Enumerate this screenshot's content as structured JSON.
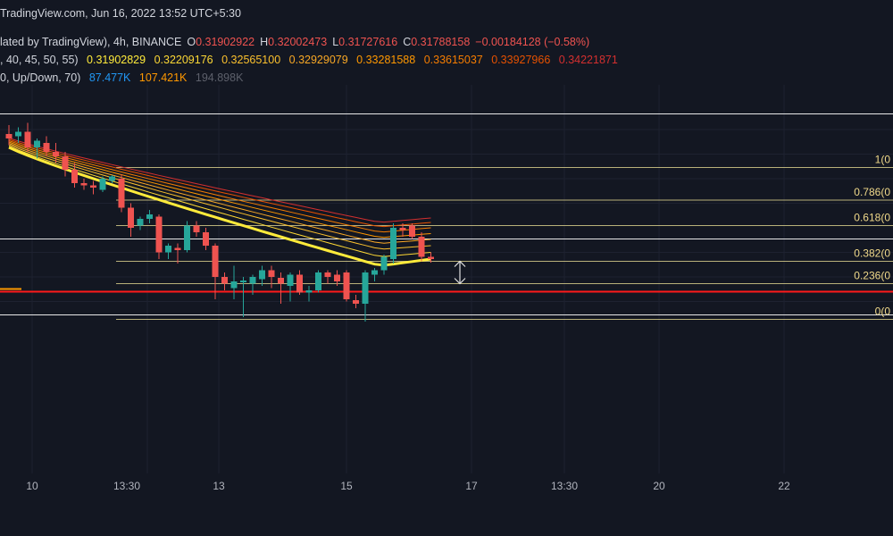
{
  "header": {
    "source_line": "TradingView.com, Jun 16, 2022 13:52 UTC+5:30",
    "symbol_line": {
      "prefix": "lated by TradingView), 4h, BINANCE",
      "o_label": "O",
      "o_value": "0.31902922",
      "h_label": "H",
      "h_value": "0.32002473",
      "l_label": "L",
      "l_value": "0.31727616",
      "c_label": "C",
      "c_value": "0.31788158",
      "change": "−0.00184128 (−0.58%)"
    },
    "ema_line": {
      "prefix": ", 40, 45, 50, 55)",
      "values": [
        "0.31902829",
        "0.32209176",
        "0.32565100",
        "0.32929079",
        "0.33281588",
        "0.33615037",
        "0.33927966",
        "0.34221871"
      ]
    },
    "volume_line": {
      "prefix": "0, Up/Down, 70)",
      "values": [
        "87.477K",
        "107.421K",
        "194.898K"
      ]
    }
  },
  "colors": {
    "background": "#131722",
    "up": "#26a69a",
    "down": "#ef5350",
    "ema": [
      "#ffeb3b",
      "#fdd835",
      "#fbc02d",
      "#f9a825",
      "#ff9800",
      "#f57c00",
      "#e65100",
      "#d32f2f"
    ],
    "fib_line": "#d6cc8a",
    "support_line": "#ff1a1a"
  },
  "chart_data": {
    "type": "candlestick",
    "x_ticks": [
      "10",
      "13:30",
      "13",
      "15",
      "17",
      "13:30",
      "20",
      "22"
    ],
    "price_range": [
      0.276,
      0.363
    ],
    "fib_levels": [
      {
        "label": "1(0",
        "price": 0.3445
      },
      {
        "label": "0.786(0",
        "price": 0.3372
      },
      {
        "label": "0.618(0",
        "price": 0.3315
      },
      {
        "label": "0.382(0",
        "price": 0.3235
      },
      {
        "label": "0.236(0",
        "price": 0.3185
      },
      {
        "label": "0(0",
        "price": 0.3105
      }
    ],
    "horizontal_lines": [
      0.3565,
      0.3285,
      0.3115
    ],
    "support_price": 0.3167,
    "candles": [
      {
        "o": 0.352,
        "h": 0.354,
        "l": 0.3495,
        "c": 0.351
      },
      {
        "o": 0.3515,
        "h": 0.3535,
        "l": 0.35,
        "c": 0.3525
      },
      {
        "o": 0.3525,
        "h": 0.3545,
        "l": 0.348,
        "c": 0.349
      },
      {
        "o": 0.349,
        "h": 0.351,
        "l": 0.3465,
        "c": 0.3505
      },
      {
        "o": 0.35,
        "h": 0.3515,
        "l": 0.347,
        "c": 0.348
      },
      {
        "o": 0.348,
        "h": 0.35,
        "l": 0.3455,
        "c": 0.347
      },
      {
        "o": 0.347,
        "h": 0.348,
        "l": 0.3425,
        "c": 0.344
      },
      {
        "o": 0.344,
        "h": 0.3455,
        "l": 0.34,
        "c": 0.341
      },
      {
        "o": 0.341,
        "h": 0.342,
        "l": 0.3395,
        "c": 0.3405
      },
      {
        "o": 0.3405,
        "h": 0.3415,
        "l": 0.3385,
        "c": 0.34
      },
      {
        "o": 0.3395,
        "h": 0.3425,
        "l": 0.339,
        "c": 0.342
      },
      {
        "o": 0.3415,
        "h": 0.3428,
        "l": 0.341,
        "c": 0.3425
      },
      {
        "o": 0.342,
        "h": 0.343,
        "l": 0.3345,
        "c": 0.3355
      },
      {
        "o": 0.3355,
        "h": 0.3365,
        "l": 0.329,
        "c": 0.331
      },
      {
        "o": 0.3315,
        "h": 0.3335,
        "l": 0.3305,
        "c": 0.333
      },
      {
        "o": 0.333,
        "h": 0.335,
        "l": 0.332,
        "c": 0.334
      },
      {
        "o": 0.3335,
        "h": 0.334,
        "l": 0.324,
        "c": 0.3255
      },
      {
        "o": 0.3255,
        "h": 0.3275,
        "l": 0.324,
        "c": 0.327
      },
      {
        "o": 0.3265,
        "h": 0.3275,
        "l": 0.323,
        "c": 0.326
      },
      {
        "o": 0.326,
        "h": 0.3325,
        "l": 0.3255,
        "c": 0.3315
      },
      {
        "o": 0.3315,
        "h": 0.3325,
        "l": 0.329,
        "c": 0.33
      },
      {
        "o": 0.33,
        "h": 0.331,
        "l": 0.326,
        "c": 0.327
      },
      {
        "o": 0.327,
        "h": 0.3275,
        "l": 0.315,
        "c": 0.32
      },
      {
        "o": 0.32,
        "h": 0.321,
        "l": 0.317,
        "c": 0.3185
      },
      {
        "o": 0.3175,
        "h": 0.3225,
        "l": 0.315,
        "c": 0.319
      },
      {
        "o": 0.3188,
        "h": 0.32,
        "l": 0.311,
        "c": 0.3192
      },
      {
        "o": 0.3185,
        "h": 0.3205,
        "l": 0.316,
        "c": 0.32
      },
      {
        "o": 0.3195,
        "h": 0.3225,
        "l": 0.318,
        "c": 0.3215
      },
      {
        "o": 0.3215,
        "h": 0.3225,
        "l": 0.3175,
        "c": 0.32
      },
      {
        "o": 0.3198,
        "h": 0.321,
        "l": 0.314,
        "c": 0.3185
      },
      {
        "o": 0.318,
        "h": 0.321,
        "l": 0.3145,
        "c": 0.3205
      },
      {
        "o": 0.3205,
        "h": 0.3215,
        "l": 0.316,
        "c": 0.3165
      },
      {
        "o": 0.3165,
        "h": 0.318,
        "l": 0.3145,
        "c": 0.317
      },
      {
        "o": 0.317,
        "h": 0.3215,
        "l": 0.3165,
        "c": 0.321
      },
      {
        "o": 0.321,
        "h": 0.3215,
        "l": 0.3185,
        "c": 0.32
      },
      {
        "o": 0.3205,
        "h": 0.3215,
        "l": 0.318,
        "c": 0.319
      },
      {
        "o": 0.321,
        "h": 0.3215,
        "l": 0.3145,
        "c": 0.315
      },
      {
        "o": 0.3148,
        "h": 0.316,
        "l": 0.313,
        "c": 0.314
      },
      {
        "o": 0.314,
        "h": 0.3215,
        "l": 0.31,
        "c": 0.321
      },
      {
        "o": 0.3205,
        "h": 0.322,
        "l": 0.319,
        "c": 0.3215
      },
      {
        "o": 0.3215,
        "h": 0.325,
        "l": 0.3205,
        "c": 0.3245
      },
      {
        "o": 0.324,
        "h": 0.332,
        "l": 0.323,
        "c": 0.331
      },
      {
        "o": 0.331,
        "h": 0.332,
        "l": 0.329,
        "c": 0.3305
      },
      {
        "o": 0.3315,
        "h": 0.332,
        "l": 0.3285,
        "c": 0.329
      },
      {
        "o": 0.329,
        "h": 0.33,
        "l": 0.3235,
        "c": 0.3245
      },
      {
        "o": 0.3245,
        "h": 0.3255,
        "l": 0.3232,
        "c": 0.324
      }
    ],
    "ema_ribbon": [
      {
        "x0": 0.349,
        "x45": 0.3225,
        "end": 0.324
      },
      {
        "x0": 0.3493,
        "x45": 0.3245,
        "end": 0.3255
      },
      {
        "x0": 0.3496,
        "x45": 0.3262,
        "end": 0.327
      },
      {
        "x0": 0.3499,
        "x45": 0.3275,
        "end": 0.3284
      },
      {
        "x0": 0.3502,
        "x45": 0.3288,
        "end": 0.3297
      },
      {
        "x0": 0.3505,
        "x45": 0.33,
        "end": 0.331
      },
      {
        "x0": 0.3508,
        "x45": 0.3312,
        "end": 0.3322
      },
      {
        "x0": 0.3511,
        "x45": 0.3322,
        "end": 0.3332
      }
    ]
  }
}
